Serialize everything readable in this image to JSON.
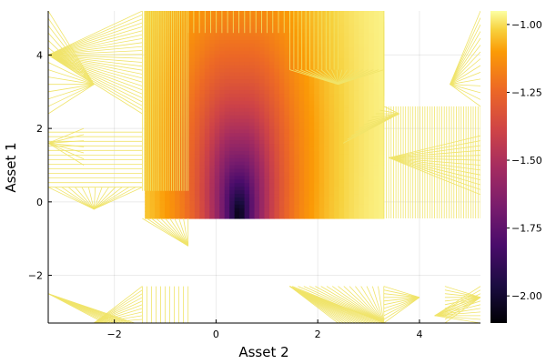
{
  "chart_data": {
    "type": "heatmap",
    "xlabel": "Asset 2",
    "ylabel": "Asset 1",
    "xlim": [
      -3.3,
      5.2
    ],
    "ylim": [
      -3.3,
      5.2
    ],
    "x_ticks": [
      -2,
      0,
      2,
      4
    ],
    "y_ticks": [
      -2,
      0,
      2,
      4
    ],
    "x_tick_labels": [
      "−2",
      "0",
      "2",
      "4"
    ],
    "y_tick_labels": [
      "−2",
      "0",
      "2",
      "4"
    ],
    "grid": true,
    "colormap": "inferno",
    "colorbar": {
      "range": [
        -2.1,
        -0.95
      ],
      "ticks": [
        -2.0,
        -1.75,
        -1.5,
        -1.25,
        -1.0
      ],
      "tick_labels": [
        "−2.00",
        "−1.75",
        "−1.50",
        "−1.25",
        "−1.00"
      ],
      "placement": "right"
    },
    "peak": {
      "x": 0.45,
      "y": -0.35,
      "value": -2.1
    },
    "filled_region": {
      "x_range": [
        -1.4,
        3.3
      ],
      "y_range": [
        -0.45,
        5.2
      ]
    },
    "blank_region": {
      "y_range": [
        -2.3,
        -0.45
      ]
    },
    "contour_color": "#f0e46a"
  }
}
